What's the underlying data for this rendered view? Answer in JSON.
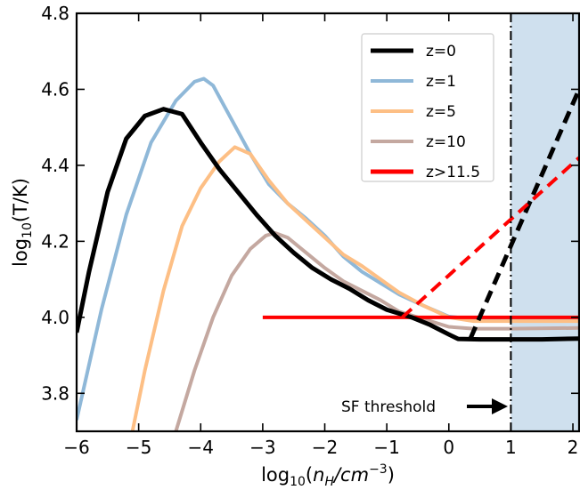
{
  "chart_data": {
    "type": "line",
    "title": "",
    "xlabel_parts": {
      "pre": "log",
      "sub": "10",
      "open": "(",
      "var": "n",
      "var_sub": "H",
      "slash": "/",
      "unit": "cm",
      "unit_sup": "−3",
      "close": ")"
    },
    "ylabel_parts": {
      "pre": "log",
      "sub": "10",
      "rest": "(T/K)"
    },
    "xlim": [
      -6,
      2.1
    ],
    "ylim": [
      3.7,
      4.8
    ],
    "xticks": [
      -6,
      -5,
      -4,
      -3,
      -2,
      -1,
      0,
      1,
      2
    ],
    "xtick_labels": [
      "−6",
      "−5",
      "−4",
      "−3",
      "−2",
      "−1",
      "0",
      "1",
      "2"
    ],
    "yticks": [
      3.8,
      4.0,
      4.2,
      4.4,
      4.6,
      4.8
    ],
    "ytick_labels": [
      "3.8",
      "4.0",
      "4.2",
      "4.4",
      "4.6",
      "4.8"
    ],
    "grid": false,
    "legend_position": "top-right",
    "series": [
      {
        "name": "z=0",
        "color": "#000000",
        "style": "solid",
        "points": [
          [
            -6.0,
            3.96
          ],
          [
            -5.8,
            4.12
          ],
          [
            -5.5,
            4.33
          ],
          [
            -5.2,
            4.47
          ],
          [
            -4.9,
            4.53
          ],
          [
            -4.6,
            4.548
          ],
          [
            -4.3,
            4.535
          ],
          [
            -4.0,
            4.46
          ],
          [
            -3.7,
            4.39
          ],
          [
            -3.4,
            4.33
          ],
          [
            -3.1,
            4.27
          ],
          [
            -2.8,
            4.215
          ],
          [
            -2.5,
            4.17
          ],
          [
            -2.2,
            4.13
          ],
          [
            -1.9,
            4.1
          ],
          [
            -1.6,
            4.075
          ],
          [
            -1.3,
            4.045
          ],
          [
            -1.0,
            4.02
          ],
          [
            -0.6,
            4.0
          ],
          [
            -0.3,
            3.98
          ],
          [
            0.0,
            3.955
          ],
          [
            0.15,
            3.943
          ],
          [
            0.5,
            3.942
          ],
          [
            1.0,
            3.942
          ],
          [
            1.5,
            3.942
          ],
          [
            2.1,
            3.944
          ]
        ]
      },
      {
        "name": "z=1",
        "color": "#8fb8d8",
        "style": "solid",
        "points": [
          [
            -6.0,
            3.73
          ],
          [
            -5.6,
            4.02
          ],
          [
            -5.2,
            4.27
          ],
          [
            -4.8,
            4.46
          ],
          [
            -4.4,
            4.57
          ],
          [
            -4.1,
            4.62
          ],
          [
            -3.95,
            4.628
          ],
          [
            -3.8,
            4.61
          ],
          [
            -3.5,
            4.52
          ],
          [
            -3.2,
            4.43
          ],
          [
            -2.9,
            4.35
          ],
          [
            -2.6,
            4.3
          ],
          [
            -2.3,
            4.26
          ],
          [
            -2.0,
            4.215
          ],
          [
            -1.7,
            4.16
          ],
          [
            -1.4,
            4.12
          ],
          [
            -1.1,
            4.09
          ],
          [
            -0.8,
            4.06
          ],
          [
            -0.4,
            4.03
          ],
          [
            0.0,
            4.002
          ],
          [
            0.4,
            3.995
          ],
          [
            1.0,
            3.995
          ],
          [
            2.1,
            3.995
          ]
        ]
      },
      {
        "name": "z=5",
        "color": "#fdbf85",
        "style": "solid",
        "points": [
          [
            -5.1,
            3.7
          ],
          [
            -4.9,
            3.86
          ],
          [
            -4.6,
            4.07
          ],
          [
            -4.3,
            4.24
          ],
          [
            -4.0,
            4.34
          ],
          [
            -3.7,
            4.41
          ],
          [
            -3.45,
            4.448
          ],
          [
            -3.2,
            4.43
          ],
          [
            -2.9,
            4.36
          ],
          [
            -2.6,
            4.3
          ],
          [
            -2.3,
            4.255
          ],
          [
            -2.0,
            4.21
          ],
          [
            -1.7,
            4.165
          ],
          [
            -1.4,
            4.135
          ],
          [
            -1.1,
            4.1
          ],
          [
            -0.8,
            4.065
          ],
          [
            -0.4,
            4.03
          ],
          [
            0.0,
            4.0
          ],
          [
            0.4,
            3.99
          ],
          [
            1.0,
            3.99
          ],
          [
            2.1,
            3.99
          ]
        ]
      },
      {
        "name": "z=10",
        "color": "#c4a8a0",
        "style": "solid",
        "points": [
          [
            -4.4,
            3.7
          ],
          [
            -4.1,
            3.86
          ],
          [
            -3.8,
            4.0
          ],
          [
            -3.5,
            4.11
          ],
          [
            -3.2,
            4.18
          ],
          [
            -2.95,
            4.215
          ],
          [
            -2.8,
            4.222
          ],
          [
            -2.6,
            4.21
          ],
          [
            -2.3,
            4.17
          ],
          [
            -2.0,
            4.13
          ],
          [
            -1.7,
            4.095
          ],
          [
            -1.4,
            4.07
          ],
          [
            -1.1,
            4.045
          ],
          [
            -0.8,
            4.015
          ],
          [
            -0.4,
            3.995
          ],
          [
            0.0,
            3.975
          ],
          [
            0.4,
            3.97
          ],
          [
            1.0,
            3.97
          ],
          [
            2.1,
            3.972
          ]
        ]
      },
      {
        "name": "z>11.5",
        "color": "#ff0000",
        "style": "solid",
        "points": [
          [
            -3.0,
            4.0
          ],
          [
            -0.8,
            4.0
          ],
          [
            0.0,
            4.0
          ],
          [
            1.0,
            4.0
          ],
          [
            2.1,
            4.0
          ]
        ]
      }
    ],
    "extra_lines": [
      {
        "color": "#000000",
        "style": "dashed",
        "points": [
          [
            0.35,
            3.945
          ],
          [
            2.1,
            4.6
          ]
        ]
      },
      {
        "color": "#ff0000",
        "style": "dashed",
        "points": [
          [
            -0.75,
            4.0
          ],
          [
            2.1,
            4.42
          ]
        ]
      }
    ],
    "threshold": {
      "x": 1.0,
      "label": "SF threshold",
      "shade_color": "#cfe0ee"
    }
  }
}
